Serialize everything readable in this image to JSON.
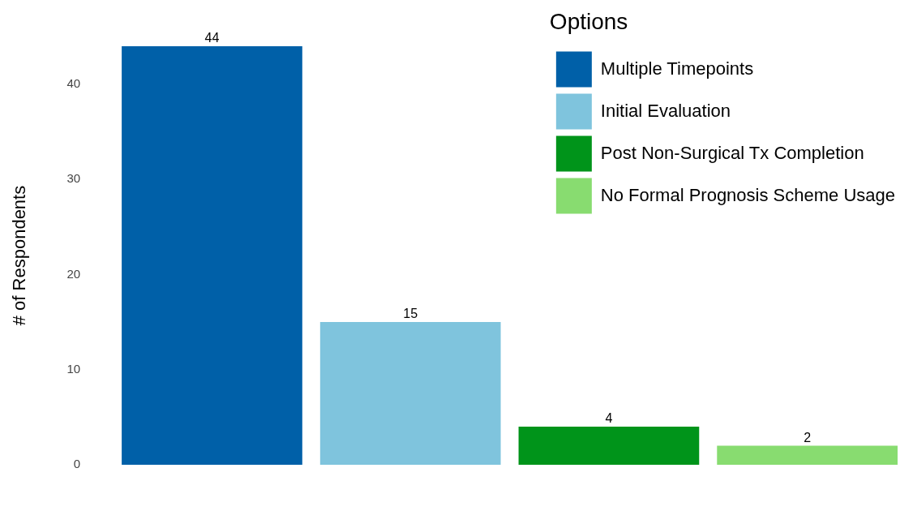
{
  "chart_data": {
    "type": "bar",
    "ylabel": "# of Respondents",
    "legend_title": "Options",
    "categories": [
      null
    ],
    "series": [
      {
        "name": "Multiple Timepoints",
        "color": "#0060a8",
        "values": [
          44
        ]
      },
      {
        "name": "Initial Evaluation",
        "color": "#7fc4dd",
        "values": [
          15
        ]
      },
      {
        "name": "Post Non-Surgical Tx Completion",
        "color": "#00941a",
        "values": [
          4
        ]
      },
      {
        "name": "No Formal Prognosis Scheme Usage",
        "color": "#88dc70",
        "values": [
          2
        ]
      }
    ],
    "ylim": [
      0,
      44
    ],
    "yticks": [
      0,
      10,
      20,
      30,
      40
    ],
    "grid": false,
    "legend": "top right",
    "tick_labels": "y",
    "data_labels": true
  }
}
